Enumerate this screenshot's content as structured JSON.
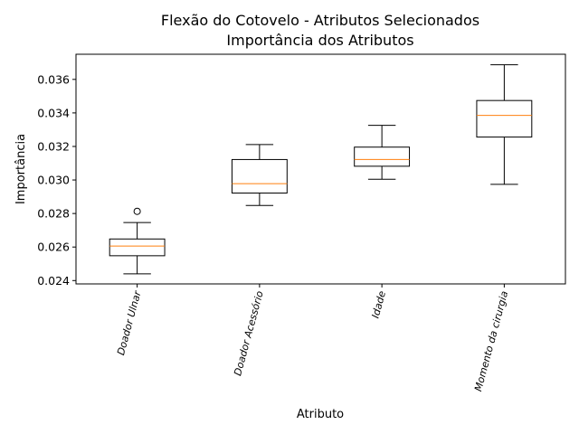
{
  "chart_data": {
    "type": "box",
    "title": "Flexão do Cotovelo - Atributos Selecionados",
    "subtitle": "Importância dos Atributos",
    "xlabel": "Atributo",
    "ylabel": "Importância",
    "ylim": [
      0.0238,
      0.0375
    ],
    "yticks": [
      0.024,
      0.026,
      0.028,
      0.03,
      0.032,
      0.034,
      0.036
    ],
    "ytick_labels": [
      "0.024",
      "0.026",
      "0.028",
      "0.030",
      "0.032",
      "0.034",
      "0.036"
    ],
    "grid": false,
    "categories": [
      "Doador Ulnar",
      "Doador Acessório",
      "Idade",
      "Momento da cirurgia"
    ],
    "boxes": [
      {
        "whisker_low": 0.0244,
        "q1": 0.02548,
        "median": 0.02606,
        "q3": 0.02648,
        "whisker_high": 0.02746,
        "outliers": [
          0.02813
        ]
      },
      {
        "whisker_low": 0.02848,
        "q1": 0.02922,
        "median": 0.02978,
        "q3": 0.03122,
        "whisker_high": 0.03211,
        "outliers": []
      },
      {
        "whisker_low": 0.03004,
        "q1": 0.03082,
        "median": 0.03122,
        "q3": 0.03196,
        "whisker_high": 0.03326,
        "outliers": []
      },
      {
        "whisker_low": 0.02974,
        "q1": 0.03256,
        "median": 0.03385,
        "q3": 0.03474,
        "whisker_high": 0.03687,
        "outliers": []
      }
    ],
    "colors": {
      "box": "#000000",
      "median": "#ff7f0e",
      "outlier": "#000000",
      "axes": "#000000"
    }
  }
}
